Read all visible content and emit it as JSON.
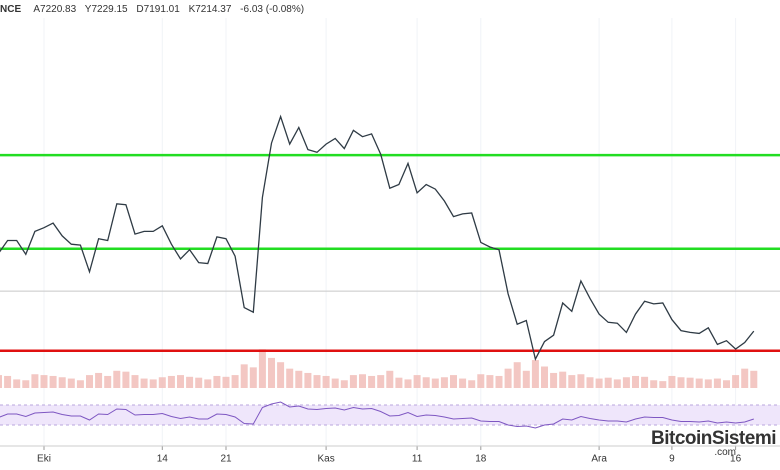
{
  "header": {
    "symbol": "NCE",
    "open": "A7220.83",
    "high": "Y7229.15",
    "low": "D7191.01",
    "close": "K7214.37",
    "change": "-6.03 (-0.08%)"
  },
  "watermark": {
    "name": "BitcoinSistemi",
    "domain": ".com"
  },
  "chart_data": [
    {
      "type": "line",
      "color": "#2f3b45",
      "ylim": [
        6900,
        10600
      ],
      "categories": [
        null,
        null,
        null,
        null,
        null,
        "Eki",
        null,
        null,
        null,
        null,
        null,
        null,
        null,
        null,
        null,
        null,
        null,
        null,
        "14",
        null,
        null,
        null,
        null,
        null,
        null,
        "21",
        null,
        null,
        null,
        null,
        null,
        null,
        null,
        null,
        null,
        null,
        "Kas",
        null,
        null,
        null,
        null,
        null,
        null,
        null,
        null,
        null,
        "11",
        null,
        null,
        null,
        null,
        null,
        null,
        "18",
        null,
        null,
        null,
        null,
        null,
        null,
        null,
        null,
        null,
        null,
        null,
        null,
        "Ara",
        null,
        null,
        null,
        null,
        null,
        null,
        null,
        "9",
        null,
        null,
        null,
        null,
        null,
        null,
        "16",
        null,
        null
      ],
      "values": [
        8060,
        8200,
        8200,
        8050,
        8300,
        8340,
        8390,
        8250,
        8160,
        8150,
        7860,
        8220,
        8200,
        8600,
        8590,
        8270,
        8300,
        8300,
        8360,
        8160,
        8000,
        8100,
        7960,
        7950,
        8240,
        8220,
        8030,
        7470,
        7420,
        8670,
        9260,
        9550,
        9250,
        9430,
        9190,
        9160,
        9250,
        9310,
        9200,
        9400,
        9330,
        9360,
        9140,
        8770,
        8810,
        9040,
        8720,
        8810,
        8760,
        8630,
        8460,
        8490,
        8500,
        8180,
        8130,
        8100,
        7620,
        7290,
        7330,
        6910,
        7100,
        7170,
        7520,
        7430,
        7760,
        7570,
        7400,
        7310,
        7300,
        7200,
        7400,
        7540,
        7510,
        7520,
        7340,
        7220,
        7200,
        7190,
        7250,
        7070,
        7110,
        7020,
        7090,
        7214.37
      ],
      "levels": [
        {
          "value": 9130,
          "color": "#22dd22"
        },
        {
          "value": 8110,
          "color": "#22dd22"
        },
        {
          "value": 7650,
          "color": "#c8c8c8"
        },
        {
          "value": 7000,
          "color": "#e01010"
        }
      ]
    },
    {
      "type": "bar",
      "color": "#f0b9b4",
      "ylim": [
        0,
        100
      ],
      "values": [
        30,
        28,
        20,
        18,
        32,
        30,
        28,
        25,
        22,
        18,
        30,
        35,
        28,
        40,
        38,
        30,
        22,
        20,
        25,
        28,
        30,
        26,
        24,
        20,
        28,
        26,
        30,
        55,
        48,
        90,
        70,
        60,
        45,
        40,
        35,
        30,
        28,
        22,
        18,
        30,
        32,
        28,
        30,
        40,
        24,
        20,
        30,
        25,
        22,
        25,
        30,
        22,
        18,
        32,
        30,
        28,
        45,
        60,
        40,
        65,
        50,
        35,
        38,
        30,
        32,
        25,
        22,
        24,
        20,
        25,
        28,
        26,
        18,
        16,
        28,
        25,
        24,
        22,
        20,
        22,
        18,
        30,
        45,
        40
      ]
    },
    {
      "type": "line",
      "color": "#7e57c2",
      "ylim": [
        0,
        100
      ],
      "band": [
        30,
        70
      ],
      "band_color": "#efe6fb",
      "values": [
        45,
        52,
        52,
        47,
        54,
        55,
        56,
        51,
        48,
        48,
        40,
        52,
        51,
        62,
        61,
        50,
        51,
        51,
        53,
        47,
        43,
        46,
        42,
        42,
        52,
        51,
        46,
        33,
        32,
        65,
        72,
        76,
        66,
        68,
        62,
        61,
        63,
        64,
        60,
        65,
        62,
        63,
        57,
        48,
        49,
        55,
        47,
        50,
        49,
        46,
        42,
        43,
        44,
        38,
        37,
        37,
        30,
        27,
        28,
        24,
        30,
        32,
        42,
        40,
        47,
        43,
        40,
        38,
        38,
        36,
        42,
        46,
        45,
        45,
        40,
        37,
        37,
        36,
        38,
        34,
        36,
        34,
        36,
        42
      ]
    }
  ]
}
